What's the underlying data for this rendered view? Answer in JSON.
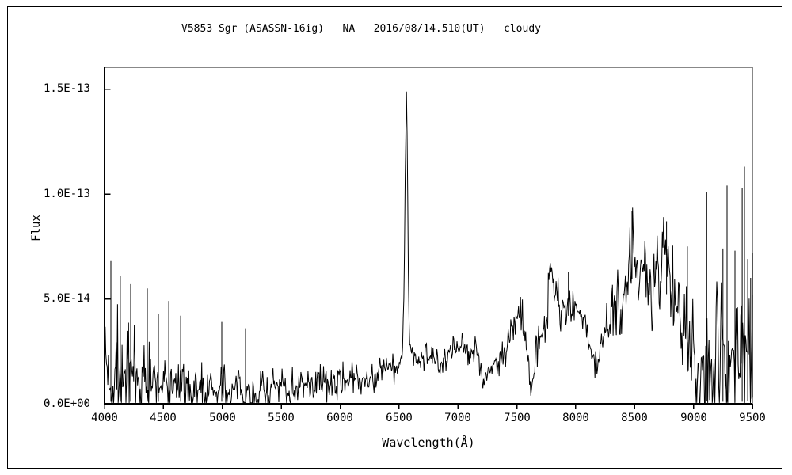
{
  "window": {
    "background": "#ffffff",
    "border_color": "#000000"
  },
  "chart_data": {
    "type": "line",
    "title": "V5853 Sgr (ASASSN-16ig)   NA   2016/08/14.510(UT)   cloudy",
    "xlabel": "Wavelength(Å)",
    "ylabel": "Flux",
    "xlim": [
      4000,
      9500
    ],
    "ylim_e14": [
      0,
      16.04
    ],
    "x_tick_values": [
      4000,
      4500,
      5000,
      5500,
      6000,
      6500,
      7000,
      7500,
      8000,
      8500,
      9000,
      9500
    ],
    "x_ticks": [
      "4000",
      "4500",
      "5000",
      "5500",
      "6000",
      "6500",
      "7000",
      "7500",
      "8000",
      "8500",
      "9000",
      "9500"
    ],
    "y_ticks": [
      {
        "value_e14": 0,
        "label": "0.0E+00"
      },
      {
        "value_e14": 5,
        "label": "5.0E-14"
      },
      {
        "value_e14": 10,
        "label": "1.0E-13"
      },
      {
        "value_e14": 15,
        "label": "1.5E-13"
      }
    ],
    "line_color": "#000000",
    "frame": {
      "left_bottom_color": "#000000",
      "top_right_color": "#888888"
    },
    "grid": false,
    "legend": false,
    "noise_seed": 7,
    "sample_step": 5.5,
    "series": [
      {
        "name": "spectrum-flux-envelope",
        "comment": "control points [wavelength_A, mean_flux_1e-14, noise_halfamp_1e-14]; narrow emission peak at H-alpha 6563 reaches 14.9e-14; telluric dips near 7215, 7618, 8160, 9000",
        "envelope": [
          [
            4000,
            1.7,
            2.3
          ],
          [
            4060,
            1.6,
            2.2
          ],
          [
            4150,
            1.4,
            1.9
          ],
          [
            4250,
            1.2,
            1.6
          ],
          [
            4350,
            1.0,
            1.3
          ],
          [
            4450,
            0.9,
            1.1
          ],
          [
            4550,
            0.8,
            1.0
          ],
          [
            4700,
            0.72,
            0.85
          ],
          [
            4850,
            0.68,
            0.8
          ],
          [
            5000,
            0.65,
            0.75
          ],
          [
            5150,
            0.6,
            0.7
          ],
          [
            5300,
            0.62,
            0.68
          ],
          [
            5450,
            0.68,
            0.65
          ],
          [
            5600,
            0.78,
            0.62
          ],
          [
            5750,
            0.88,
            0.6
          ],
          [
            5900,
            1.0,
            0.58
          ],
          [
            6050,
            1.15,
            0.55
          ],
          [
            6200,
            1.3,
            0.55
          ],
          [
            6320,
            1.45,
            0.55
          ],
          [
            6440,
            1.7,
            0.55
          ],
          [
            6510,
            1.95,
            0.5
          ],
          [
            6532,
            2.6,
            0.4
          ],
          [
            6545,
            6.0,
            0.4
          ],
          [
            6554,
            11.5,
            0.3
          ],
          [
            6563,
            14.85,
            0.1
          ],
          [
            6570,
            12.5,
            0.3
          ],
          [
            6578,
            7.0,
            0.4
          ],
          [
            6588,
            3.2,
            0.4
          ],
          [
            6600,
            2.4,
            0.4
          ],
          [
            6650,
            2.1,
            0.4
          ],
          [
            6750,
            2.05,
            0.45
          ],
          [
            6850,
            2.15,
            0.45
          ],
          [
            6950,
            2.4,
            0.5
          ],
          [
            7050,
            2.65,
            0.55
          ],
          [
            7150,
            2.85,
            0.55
          ],
          [
            7185,
            2.0,
            0.5
          ],
          [
            7215,
            1.2,
            0.45
          ],
          [
            7255,
            1.5,
            0.5
          ],
          [
            7330,
            2.0,
            0.55
          ],
          [
            7400,
            2.6,
            0.65
          ],
          [
            7460,
            3.6,
            0.75
          ],
          [
            7520,
            4.1,
            0.75
          ],
          [
            7565,
            3.8,
            0.65
          ],
          [
            7595,
            2.2,
            0.5
          ],
          [
            7618,
            0.85,
            0.35
          ],
          [
            7645,
            1.4,
            0.5
          ],
          [
            7680,
            2.9,
            0.85
          ],
          [
            7725,
            3.5,
            0.95
          ],
          [
            7758,
            4.4,
            0.8
          ],
          [
            7780,
            6.6,
            0.55
          ],
          [
            7795,
            6.7,
            0.5
          ],
          [
            7815,
            5.4,
            0.7
          ],
          [
            7870,
            4.6,
            0.7
          ],
          [
            7940,
            4.9,
            0.7
          ],
          [
            8000,
            4.5,
            0.65
          ],
          [
            8050,
            4.2,
            0.6
          ],
          [
            8105,
            3.3,
            0.6
          ],
          [
            8150,
            2.1,
            0.5
          ],
          [
            8185,
            1.8,
            0.45
          ],
          [
            8230,
            2.9,
            0.8
          ],
          [
            8300,
            3.9,
            1.0
          ],
          [
            8360,
            4.6,
            1.1
          ],
          [
            8410,
            5.2,
            1.2
          ],
          [
            8450,
            7.2,
            1.3
          ],
          [
            8500,
            7.3,
            1.3
          ],
          [
            8560,
            6.6,
            1.2
          ],
          [
            8630,
            4.9,
            1.0
          ],
          [
            8690,
            6.2,
            1.2
          ],
          [
            8740,
            6.9,
            1.3
          ],
          [
            8790,
            6.3,
            1.3
          ],
          [
            8840,
            5.2,
            1.2
          ],
          [
            8890,
            4.1,
            1.1
          ],
          [
            8940,
            3.2,
            1.5
          ],
          [
            9000,
            2.2,
            1.9
          ],
          [
            9060,
            2.0,
            2.0
          ],
          [
            9130,
            2.6,
            2.4
          ],
          [
            9200,
            2.8,
            2.7
          ],
          [
            9300,
            2.6,
            2.5
          ],
          [
            9400,
            2.3,
            2.4
          ],
          [
            9500,
            2.9,
            2.6
          ]
        ],
        "spikes": [
          [
            4054,
            6.8
          ],
          [
            4134,
            6.1
          ],
          [
            4222,
            5.7
          ],
          [
            4363,
            5.5
          ],
          [
            4457,
            4.3
          ],
          [
            4545,
            4.9
          ],
          [
            4646,
            4.2
          ],
          [
            4995,
            3.9
          ],
          [
            5197,
            3.6
          ],
          [
            7938,
            6.3
          ],
          [
            8478,
            9.2
          ],
          [
            8771,
            8.7
          ],
          [
            8948,
            7.5
          ],
          [
            9112,
            10.1
          ],
          [
            9250,
            7.4
          ],
          [
            9285,
            10.4
          ],
          [
            9352,
            7.3
          ],
          [
            9413,
            10.3
          ],
          [
            9433,
            11.3
          ],
          [
            9460,
            6.9
          ],
          [
            9485,
            6.0
          ],
          [
            9499,
            7.2
          ]
        ]
      }
    ]
  }
}
